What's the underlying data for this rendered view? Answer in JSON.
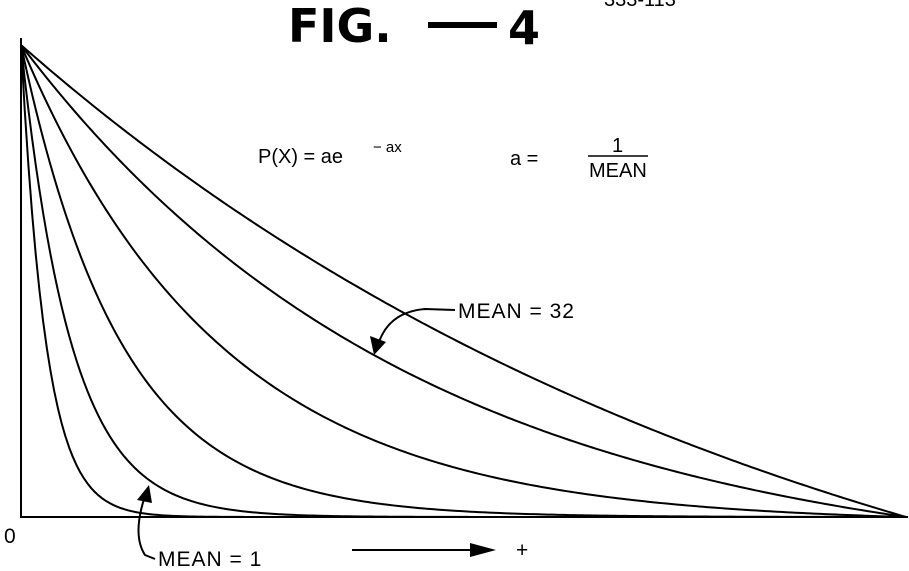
{
  "figure": {
    "title": "FIG.",
    "number": "4",
    "corner_text": "333-113"
  },
  "formulas": {
    "density_lhs": "P(X) = ae",
    "density_exponent": "− ax",
    "rate_lhs": "a =",
    "rate_numerator": "1",
    "rate_denominator": "MEAN"
  },
  "annotations": {
    "upper_curve_label": "MEAN = 32",
    "lower_curve_label": "MEAN = 1",
    "origin_label": "0",
    "direction_label": "+"
  },
  "chart_data": {
    "type": "line",
    "title": "FIG.—4",
    "xlabel": "",
    "ylabel": "",
    "grid": false,
    "axis_ticks": false,
    "series": [
      {
        "name": "MEAN = 1",
        "mean": 1
      },
      {
        "mean": 2
      },
      {
        "mean": 4
      },
      {
        "mean": 8
      },
      {
        "mean": 16
      },
      {
        "name": "MEAN = 32",
        "mean": 32
      }
    ],
    "colors": {
      "ink": "#000000",
      "paper": "#ffffff"
    }
  }
}
